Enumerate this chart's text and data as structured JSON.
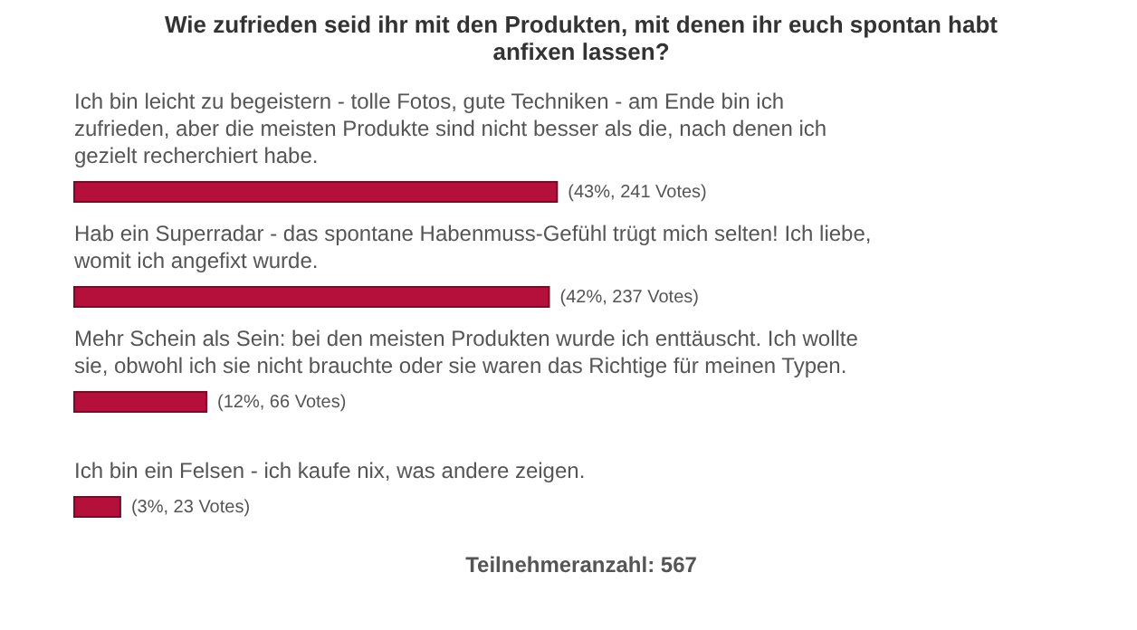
{
  "chart_data": {
    "type": "bar",
    "orientation": "horizontal",
    "title": "Wie zufrieden seid ihr mit den Produkten, mit denen ihr euch spontan habt anfixen lassen?",
    "categories": [
      "Ich bin leicht zu begeistern - tolle Fotos, gute Techniken - am Ende bin ich zufrieden, aber die meisten Produkte sind nicht besser als die, nach denen ich gezielt recherchiert habe.",
      "Hab ein Superradar - das spontane Habenmuss-Gefühl trügt mich selten! Ich liebe, womit ich angefixt wurde.",
      "Mehr Schein als Sein: bei den meisten Produkten wurde ich enttäuscht. Ich wollte sie, obwohl ich sie nicht brauchte oder sie waren das Richtige für meinen Typen.",
      "Ich bin ein Felsen - ich kaufe nix, was andere zeigen."
    ],
    "values": [
      241,
      237,
      66,
      23
    ],
    "value_labels": [
      "(43%, 241 Votes)",
      "(42%, 237 Votes)",
      "(12%, 66 Votes)",
      "(3%, 23 Votes)"
    ],
    "color": "#b5103c",
    "annotations": [
      "Teilnehmeranzahl: 567"
    ]
  }
}
